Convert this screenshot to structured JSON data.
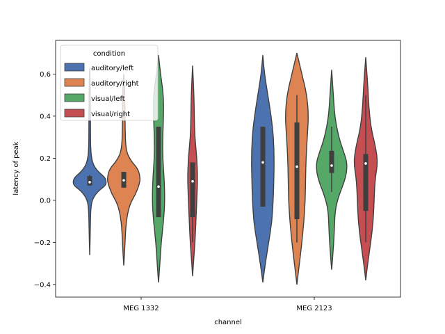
{
  "chart_data": {
    "type": "violin",
    "xlabel": "channel",
    "ylabel": "latency of peak",
    "ylim": [
      -0.46,
      0.76
    ],
    "yticks": [
      "0.6",
      "0.4",
      "0.2",
      "0.0",
      "−0.2",
      "−0.4"
    ],
    "ytick_values": [
      0.6,
      0.4,
      0.2,
      0.0,
      -0.2,
      -0.4
    ],
    "categories": [
      "MEG 1332",
      "MEG 2123"
    ],
    "legend": {
      "title": "condition",
      "position": "upper-left"
    },
    "series": [
      {
        "name": "auditory/left",
        "color": "#4c72b0",
        "groups": [
          {
            "median": 0.086,
            "q1": 0.07,
            "q3": 0.115,
            "whisker_low": 0.07,
            "whisker_high": 0.12,
            "profile": [
              [
                -0.26,
                0.0
              ],
              [
                -0.2,
                0.02
              ],
              [
                -0.12,
                0.04
              ],
              [
                -0.05,
                0.06
              ],
              [
                0.0,
                0.13
              ],
              [
                0.04,
                0.45
              ],
              [
                0.07,
                0.95
              ],
              [
                0.09,
                1.0
              ],
              [
                0.11,
                0.9
              ],
              [
                0.14,
                0.45
              ],
              [
                0.18,
                0.14
              ],
              [
                0.25,
                0.05
              ],
              [
                0.35,
                0.05
              ],
              [
                0.45,
                0.04
              ],
              [
                0.55,
                0.03
              ],
              [
                0.63,
                0.0
              ]
            ]
          },
          {
            "median": 0.18,
            "q1": -0.03,
            "q3": 0.35,
            "whisker_low": -0.03,
            "whisker_high": 0.35,
            "profile": [
              [
                -0.39,
                0.0
              ],
              [
                -0.3,
                0.15
              ],
              [
                -0.2,
                0.35
              ],
              [
                -0.1,
                0.55
              ],
              [
                0.0,
                0.62
              ],
              [
                0.1,
                0.66
              ],
              [
                0.2,
                0.68
              ],
              [
                0.3,
                0.64
              ],
              [
                0.4,
                0.5
              ],
              [
                0.5,
                0.3
              ],
              [
                0.6,
                0.1
              ],
              [
                0.69,
                0.0
              ]
            ]
          }
        ]
      },
      {
        "name": "auditory/right",
        "color": "#dd8452",
        "groups": [
          {
            "median": 0.095,
            "q1": 0.06,
            "q3": 0.135,
            "whisker_low": 0.06,
            "whisker_high": 0.135,
            "profile": [
              [
                -0.31,
                0.0
              ],
              [
                -0.2,
                0.08
              ],
              [
                -0.1,
                0.14
              ],
              [
                -0.02,
                0.35
              ],
              [
                0.03,
                0.72
              ],
              [
                0.08,
                0.95
              ],
              [
                0.11,
                0.98
              ],
              [
                0.15,
                0.85
              ],
              [
                0.19,
                0.4
              ],
              [
                0.24,
                0.12
              ],
              [
                0.35,
                0.08
              ],
              [
                0.45,
                0.07
              ],
              [
                0.55,
                0.05
              ],
              [
                0.6,
                0.0
              ]
            ]
          },
          {
            "median": 0.16,
            "q1": -0.09,
            "q3": 0.37,
            "whisker_low": -0.2,
            "whisker_high": 0.5,
            "profile": [
              [
                -0.4,
                0.0
              ],
              [
                -0.3,
                0.15
              ],
              [
                -0.2,
                0.3
              ],
              [
                -0.1,
                0.42
              ],
              [
                0.0,
                0.5
              ],
              [
                0.1,
                0.52
              ],
              [
                0.2,
                0.55
              ],
              [
                0.3,
                0.62
              ],
              [
                0.4,
                0.7
              ],
              [
                0.5,
                0.6
              ],
              [
                0.6,
                0.3
              ],
              [
                0.7,
                0.0
              ]
            ]
          }
        ]
      },
      {
        "name": "visual/left",
        "color": "#55a868",
        "groups": [
          {
            "median": 0.065,
            "q1": -0.08,
            "q3": 0.35,
            "whisker_low": -0.08,
            "whisker_high": 0.35,
            "profile": [
              [
                -0.39,
                0.0
              ],
              [
                -0.3,
                0.08
              ],
              [
                -0.2,
                0.16
              ],
              [
                -0.1,
                0.3
              ],
              [
                0.0,
                0.38
              ],
              [
                0.1,
                0.34
              ],
              [
                0.2,
                0.25
              ],
              [
                0.3,
                0.25
              ],
              [
                0.4,
                0.3
              ],
              [
                0.5,
                0.3
              ],
              [
                0.6,
                0.12
              ],
              [
                0.69,
                0.0
              ]
            ]
          },
          {
            "median": 0.165,
            "q1": 0.13,
            "q3": 0.235,
            "whisker_low": 0.04,
            "whisker_high": 0.35,
            "profile": [
              [
                -0.33,
                0.0
              ],
              [
                -0.25,
                0.08
              ],
              [
                -0.15,
                0.16
              ],
              [
                -0.05,
                0.2
              ],
              [
                0.02,
                0.42
              ],
              [
                0.08,
                0.72
              ],
              [
                0.13,
                0.9
              ],
              [
                0.18,
                0.92
              ],
              [
                0.23,
                0.72
              ],
              [
                0.3,
                0.42
              ],
              [
                0.4,
                0.18
              ],
              [
                0.5,
                0.1
              ],
              [
                0.62,
                0.0
              ]
            ]
          }
        ]
      },
      {
        "name": "visual/right",
        "color": "#c44e52",
        "groups": [
          {
            "median": 0.09,
            "q1": -0.08,
            "q3": 0.18,
            "whisker_low": -0.2,
            "whisker_high": 0.18,
            "profile": [
              [
                -0.36,
                0.0
              ],
              [
                -0.28,
                0.07
              ],
              [
                -0.2,
                0.14
              ],
              [
                -0.1,
                0.2
              ],
              [
                0.0,
                0.25
              ],
              [
                0.1,
                0.3
              ],
              [
                0.2,
                0.26
              ],
              [
                0.3,
                0.13
              ],
              [
                0.4,
                0.1
              ],
              [
                0.5,
                0.08
              ],
              [
                0.64,
                0.0
              ]
            ]
          },
          {
            "median": 0.175,
            "q1": -0.05,
            "q3": 0.22,
            "whisker_low": -0.2,
            "whisker_high": 0.5,
            "profile": [
              [
                -0.38,
                0.0
              ],
              [
                -0.3,
                0.12
              ],
              [
                -0.2,
                0.3
              ],
              [
                -0.1,
                0.45
              ],
              [
                0.0,
                0.5
              ],
              [
                0.1,
                0.56
              ],
              [
                0.18,
                0.72
              ],
              [
                0.25,
                0.6
              ],
              [
                0.35,
                0.3
              ],
              [
                0.45,
                0.18
              ],
              [
                0.55,
                0.12
              ],
              [
                0.68,
                0.0
              ]
            ]
          }
        ]
      }
    ]
  }
}
